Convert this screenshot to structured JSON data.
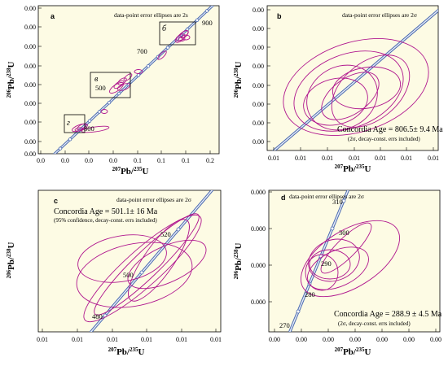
{
  "chart_data": [
    {
      "type": "scatter",
      "panel": "a",
      "note": "data-point error ellipses are 2s",
      "x_ticks": [
        "0.0",
        "0.0",
        "0.0",
        "0.0",
        "0.1",
        "0.1",
        "0.1",
        "0.2"
      ],
      "y_ticks": [
        "0.00",
        "0.00",
        "0.00",
        "0.00",
        "0.00",
        "0.00",
        "0.00",
        "0.00",
        "0.00",
        "0.00"
      ],
      "xlabel": {
        "sup1": "207",
        "base1": "Pb/",
        "sup2": "235",
        "base2": "U"
      },
      "ylabel": {
        "sup1": "206",
        "base1": "Pb/",
        "sup2": "238",
        "base2": "U"
      },
      "concordia_labels": [
        "300",
        "500",
        "700",
        "900"
      ],
      "box_labels": [
        "г",
        "в",
        "б"
      ],
      "colors": {
        "background": "#fdfbe4",
        "concordia": "#4b6ab0",
        "ellipse": "#b0178e"
      }
    },
    {
      "type": "scatter",
      "panel": "b",
      "note": "data-point error ellipses are 2σ",
      "x_ticks": [
        "0.01",
        "0.01",
        "0.01",
        "0.01",
        "0.01",
        "0.01",
        "0.01"
      ],
      "y_ticks": [
        "0.00",
        "0.00",
        "0.00",
        "0.00",
        "0.00",
        "0.00",
        "0.00",
        "0.00"
      ],
      "xlabel": {
        "sup1": "207",
        "base1": "Pb/",
        "sup2": "235",
        "base2": "U"
      },
      "ylabel": {
        "sup1": "206",
        "base1": "Pb/",
        "sup2": "238",
        "base2": "U"
      },
      "age": "Concordia Age = 806.5± 9.4 Ma",
      "age_sub": "(2σ, decay-const. errs included)"
    },
    {
      "type": "scatter",
      "panel": "c",
      "note": "data-point error ellipses are 2σ",
      "x_ticks": [
        "0.01",
        "0.01",
        "0.01",
        "0.01",
        "0.01",
        "0.01"
      ],
      "y_ticks": [],
      "xlabel": {
        "sup1": "207",
        "base1": "Pb/",
        "sup2": "235",
        "base2": "U"
      },
      "ylabel": {
        "sup1": "206",
        "base1": "Pb/",
        "sup2": "238",
        "base2": "U"
      },
      "age": "Concordia Age = 501.1± 16 Ma",
      "age_sub": "(95% confidence, decay-const. errs included)",
      "concordia_labels": [
        "480",
        "500",
        "520"
      ]
    },
    {
      "type": "scatter",
      "panel": "d",
      "note": "data-point error ellipses are 2σ",
      "x_ticks": [
        "0.00",
        "0.00",
        "0.00",
        "0.00",
        "0.00",
        "0.00",
        "0.00"
      ],
      "y_ticks": [
        "0.000",
        "0.000",
        "0.000",
        "0.000"
      ],
      "xlabel": {
        "sup1": "207",
        "base1": "Pb/",
        "sup2": "235",
        "base2": "U"
      },
      "ylabel": {
        "sup1": "206",
        "base1": "Pb/",
        "sup2": "238",
        "base2": "U"
      },
      "age": "Concordia Age = 288.9 ± 4.5 Ma",
      "age_sub": "(2σ, decay-const. errs included)",
      "concordia_labels": [
        "270",
        "280",
        "290",
        "300",
        "310"
      ]
    }
  ]
}
